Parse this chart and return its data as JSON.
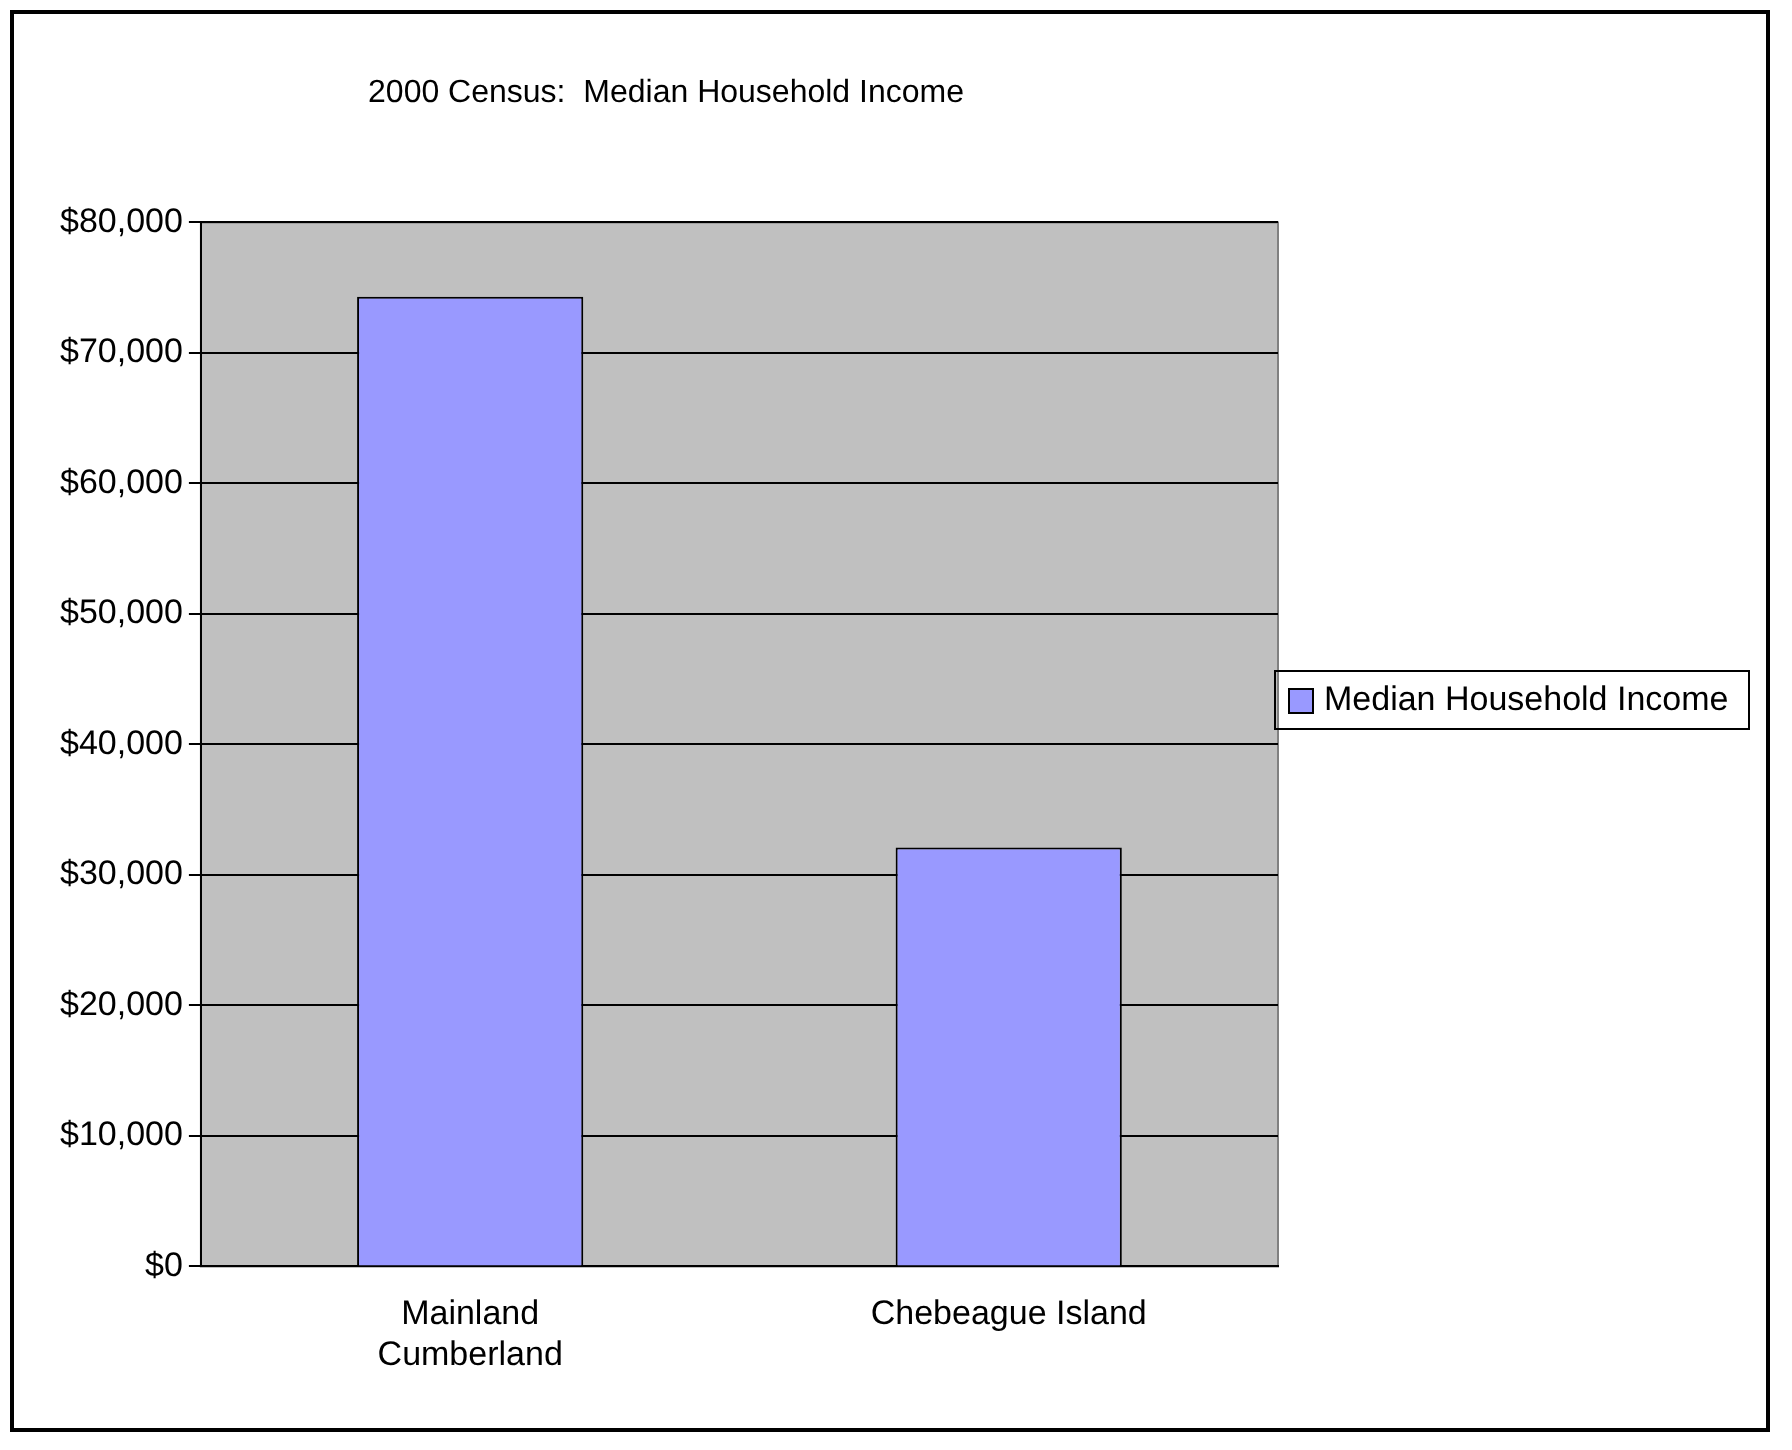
{
  "chart_data": {
    "type": "bar",
    "title": "2000 Census:  Median Household Income",
    "categories": [
      "Mainland Cumberland",
      "Chebeague Island"
    ],
    "series": [
      {
        "name": "Median Household Income",
        "color": "#9999ff",
        "values": [
          74300,
          32100
        ]
      }
    ],
    "ylim": [
      0,
      80000
    ],
    "yticks": [
      {
        "value": 0,
        "label": "$0"
      },
      {
        "value": 10000,
        "label": "$10,000"
      },
      {
        "value": 20000,
        "label": "$20,000"
      },
      {
        "value": 30000,
        "label": "$30,000"
      },
      {
        "value": 40000,
        "label": "$40,000"
      },
      {
        "value": 50000,
        "label": "$50,000"
      },
      {
        "value": 60000,
        "label": "$60,000"
      },
      {
        "value": 70000,
        "label": "$70,000"
      },
      {
        "value": 80000,
        "label": "$80,000"
      }
    ],
    "grid": "y",
    "legend": "right"
  }
}
